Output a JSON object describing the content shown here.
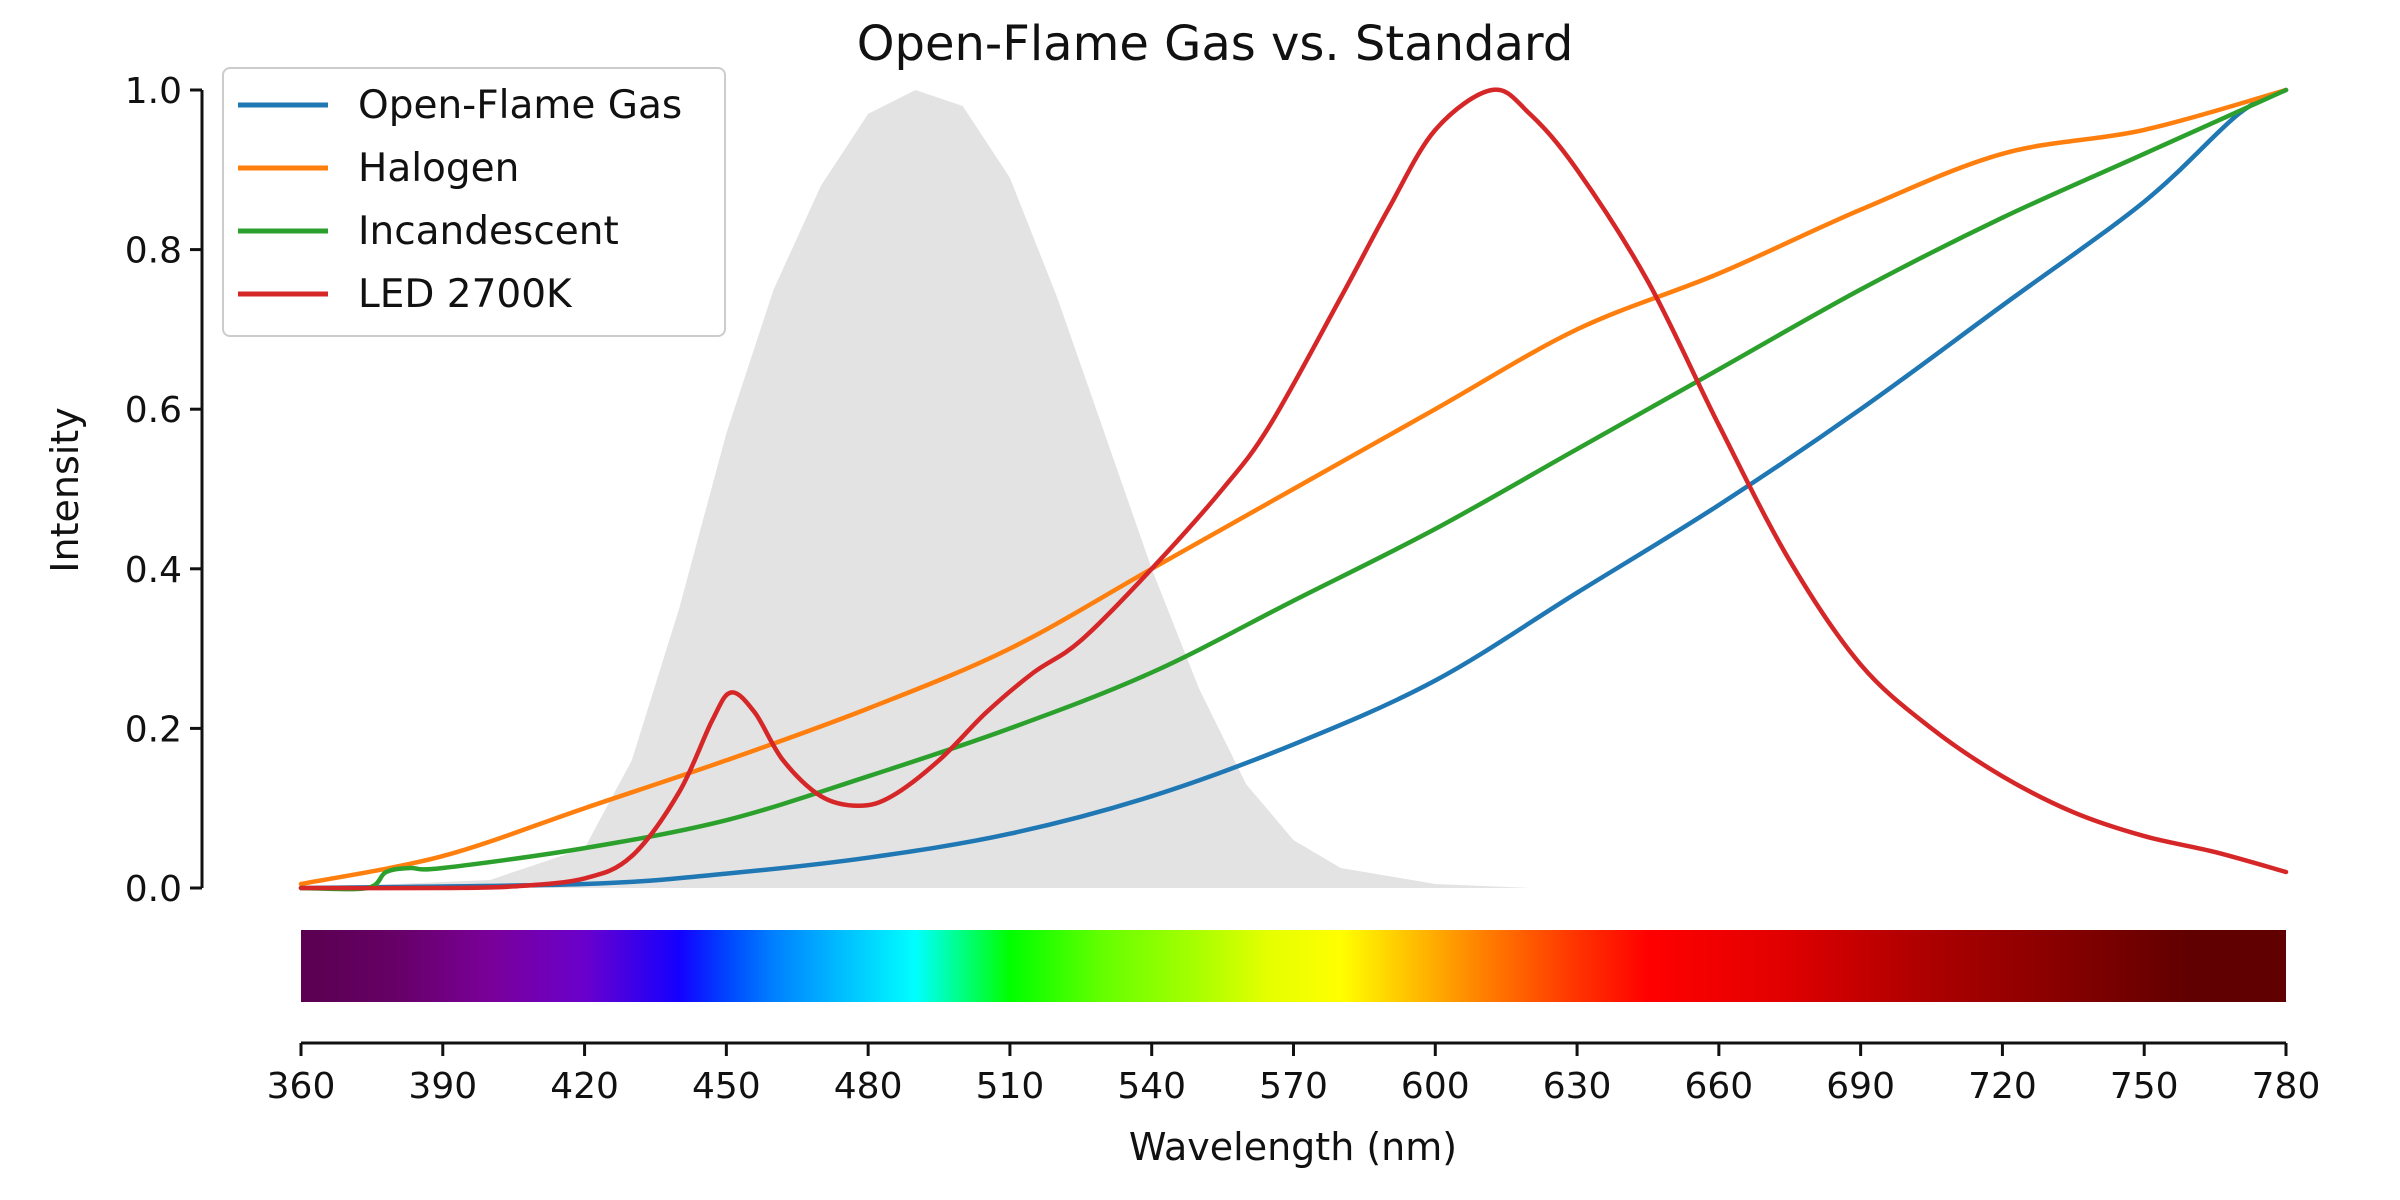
{
  "chart_data": {
    "type": "line",
    "title": "Open-Flame Gas vs. Standard",
    "xlabel": "Wavelength (nm)",
    "ylabel": "Intensity",
    "xlim": [
      360,
      780
    ],
    "ylim": [
      0,
      1
    ],
    "x_ticks": [
      "360",
      "390",
      "420",
      "450",
      "480",
      "510",
      "540",
      "570",
      "600",
      "630",
      "660",
      "690",
      "720",
      "750",
      "780"
    ],
    "y_ticks": [
      "0.0",
      "0.2",
      "0.4",
      "0.6",
      "0.8",
      "1.0"
    ],
    "grid": false,
    "legend_position": "top-left",
    "background_band": {
      "description": "luminosity",
      "color": "#e3e3e3",
      "points": [
        [
          360,
          0
        ],
        [
          400,
          0.01
        ],
        [
          420,
          0.05
        ],
        [
          430,
          0.16
        ],
        [
          440,
          0.35
        ],
        [
          450,
          0.57
        ],
        [
          460,
          0.75
        ],
        [
          470,
          0.88
        ],
        [
          480,
          0.97
        ],
        [
          490,
          1.0
        ],
        [
          500,
          0.98
        ],
        [
          510,
          0.89
        ],
        [
          520,
          0.74
        ],
        [
          530,
          0.57
        ],
        [
          540,
          0.4
        ],
        [
          550,
          0.25
        ],
        [
          560,
          0.13
        ],
        [
          570,
          0.06
        ],
        [
          580,
          0.025
        ],
        [
          600,
          0.005
        ],
        [
          620,
          0.0
        ],
        [
          780,
          0.0
        ]
      ]
    },
    "series": [
      {
        "name": "Open-Flame Gas",
        "color": "#1f77b4",
        "points": [
          [
            360,
            0
          ],
          [
            420,
            0.005
          ],
          [
            450,
            0.018
          ],
          [
            480,
            0.038
          ],
          [
            510,
            0.068
          ],
          [
            540,
            0.115
          ],
          [
            570,
            0.18
          ],
          [
            600,
            0.26
          ],
          [
            630,
            0.37
          ],
          [
            660,
            0.48
          ],
          [
            690,
            0.6
          ],
          [
            720,
            0.73
          ],
          [
            750,
            0.86
          ],
          [
            770,
            0.97
          ],
          [
            780,
            1.0
          ]
        ]
      },
      {
        "name": "Halogen",
        "color": "#ff7f0e",
        "points": [
          [
            360,
            0.005
          ],
          [
            390,
            0.04
          ],
          [
            420,
            0.1
          ],
          [
            450,
            0.16
          ],
          [
            480,
            0.225
          ],
          [
            510,
            0.3
          ],
          [
            540,
            0.4
          ],
          [
            570,
            0.5
          ],
          [
            600,
            0.6
          ],
          [
            630,
            0.7
          ],
          [
            660,
            0.77
          ],
          [
            690,
            0.85
          ],
          [
            720,
            0.92
          ],
          [
            750,
            0.95
          ],
          [
            780,
            1.0
          ]
        ]
      },
      {
        "name": "Incandescent",
        "color": "#2ca02c",
        "points": [
          [
            360,
            0
          ],
          [
            374,
            0
          ],
          [
            378,
            0.02
          ],
          [
            383,
            0.025
          ],
          [
            390,
            0.025
          ],
          [
            420,
            0.05
          ],
          [
            450,
            0.085
          ],
          [
            480,
            0.14
          ],
          [
            510,
            0.2
          ],
          [
            540,
            0.27
          ],
          [
            570,
            0.36
          ],
          [
            600,
            0.45
          ],
          [
            630,
            0.55
          ],
          [
            660,
            0.65
          ],
          [
            690,
            0.75
          ],
          [
            720,
            0.84
          ],
          [
            750,
            0.92
          ],
          [
            780,
            1.0
          ]
        ]
      },
      {
        "name": "LED 2700K",
        "color": "#d62728",
        "points": [
          [
            360,
            0
          ],
          [
            390,
            0
          ],
          [
            405,
            0.002
          ],
          [
            420,
            0.012
          ],
          [
            430,
            0.04
          ],
          [
            440,
            0.12
          ],
          [
            447,
            0.21
          ],
          [
            451,
            0.245
          ],
          [
            456,
            0.22
          ],
          [
            462,
            0.16
          ],
          [
            470,
            0.115
          ],
          [
            478,
            0.103
          ],
          [
            485,
            0.115
          ],
          [
            495,
            0.16
          ],
          [
            505,
            0.22
          ],
          [
            515,
            0.27
          ],
          [
            525,
            0.31
          ],
          [
            540,
            0.4
          ],
          [
            555,
            0.5
          ],
          [
            565,
            0.58
          ],
          [
            580,
            0.74
          ],
          [
            590,
            0.85
          ],
          [
            600,
            0.95
          ],
          [
            612,
            1.0
          ],
          [
            620,
            0.97
          ],
          [
            630,
            0.9
          ],
          [
            645,
            0.76
          ],
          [
            660,
            0.58
          ],
          [
            675,
            0.41
          ],
          [
            690,
            0.28
          ],
          [
            705,
            0.2
          ],
          [
            720,
            0.14
          ],
          [
            735,
            0.095
          ],
          [
            750,
            0.065
          ],
          [
            765,
            0.045
          ],
          [
            780,
            0.02
          ]
        ]
      }
    ],
    "spectrum_bar": {
      "stops": [
        [
          360,
          "#5a0050"
        ],
        [
          380,
          "#660066"
        ],
        [
          400,
          "#7a0099"
        ],
        [
          420,
          "#6a00cc"
        ],
        [
          440,
          "#1400ff"
        ],
        [
          450,
          "#0044ff"
        ],
        [
          460,
          "#0080ff"
        ],
        [
          475,
          "#00c0ff"
        ],
        [
          490,
          "#00ffff"
        ],
        [
          500,
          "#00ff80"
        ],
        [
          510,
          "#00ff00"
        ],
        [
          530,
          "#66ff00"
        ],
        [
          550,
          "#aaff00"
        ],
        [
          565,
          "#e6ff00"
        ],
        [
          580,
          "#ffff00"
        ],
        [
          595,
          "#ffc000"
        ],
        [
          610,
          "#ff8000"
        ],
        [
          630,
          "#ff3300"
        ],
        [
          645,
          "#ff0000"
        ],
        [
          670,
          "#e60000"
        ],
        [
          700,
          "#b30000"
        ],
        [
          730,
          "#8a0000"
        ],
        [
          760,
          "#600000"
        ],
        [
          780,
          "#600000"
        ]
      ]
    }
  }
}
